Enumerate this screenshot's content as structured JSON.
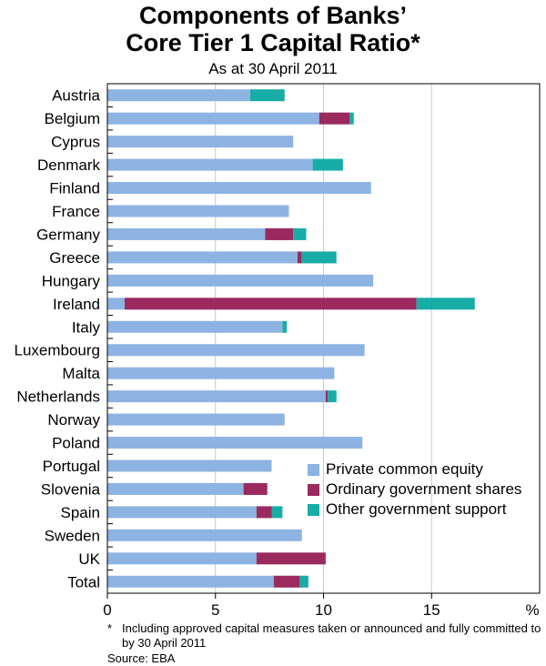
{
  "chart_data": {
    "type": "bar",
    "orientation": "horizontal",
    "stacked": true,
    "title_lines": [
      "Components of Banks’",
      "Core Tier 1 Capital Ratio*"
    ],
    "subtitle": "As at 30 April 2011",
    "xlabel": "%",
    "xlim": [
      0,
      20
    ],
    "xticks": [
      0,
      5,
      10,
      15
    ],
    "grid": true,
    "legend_position": "lower-right",
    "categories": [
      "Austria",
      "Belgium",
      "Cyprus",
      "Denmark",
      "Finland",
      "France",
      "Germany",
      "Greece",
      "Hungary",
      "Ireland",
      "Italy",
      "Luxembourg",
      "Malta",
      "Netherlands",
      "Norway",
      "Poland",
      "Portugal",
      "Slovenia",
      "Spain",
      "Sweden",
      "UK",
      "Total"
    ],
    "series": [
      {
        "name": "Private common equity",
        "color": "#8db3e2",
        "values": [
          6.6,
          9.8,
          8.6,
          9.5,
          12.2,
          8.4,
          7.3,
          8.8,
          12.3,
          0.8,
          8.1,
          11.9,
          10.5,
          10.1,
          8.2,
          11.8,
          7.6,
          6.3,
          6.9,
          9.0,
          6.9,
          7.7
        ]
      },
      {
        "name": "Ordinary government shares",
        "color": "#9b2a5e",
        "values": [
          0,
          1.4,
          0,
          0,
          0,
          0,
          1.3,
          0.2,
          0,
          13.5,
          0,
          0,
          0,
          0.1,
          0,
          0,
          0,
          1.1,
          0.7,
          0,
          3.2,
          1.2
        ]
      },
      {
        "name": "Other government support",
        "color": "#17ada6",
        "values": [
          1.6,
          0.2,
          0,
          1.4,
          0,
          0,
          0.6,
          1.6,
          0,
          2.7,
          0.2,
          0,
          0,
          0.4,
          0,
          0,
          0,
          0,
          0.5,
          0,
          0,
          0.4
        ]
      }
    ],
    "footnote_marker": "*",
    "footnote": "Including approved capital measures taken or announced and fully committed to by 30 April 2011",
    "source": "Source: EBA"
  }
}
